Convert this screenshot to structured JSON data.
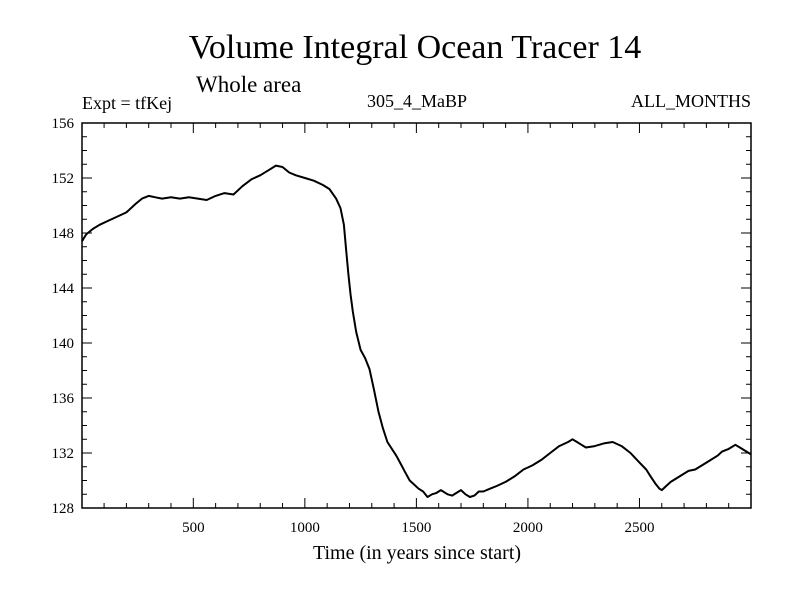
{
  "chart_data": {
    "type": "line",
    "title": "Volume Integral Ocean Tracer 14",
    "subtitle": "Whole area",
    "left_label": "Expt = tfKej",
    "center_label": "305_4_MaBP",
    "right_label": "ALL_MONTHS",
    "xlabel": "Time (in years since start)",
    "ylabel": "",
    "xlim": [
      1,
      3000
    ],
    "ylim": [
      128,
      156
    ],
    "xticks": [
      500,
      1000,
      1500,
      2000,
      2500
    ],
    "yticks": [
      128,
      132,
      136,
      140,
      144,
      148,
      152,
      156
    ],
    "grid": false,
    "series": [
      {
        "color": "#000000",
        "x": [
          1,
          20,
          50,
          80,
          120,
          160,
          200,
          240,
          270,
          300,
          330,
          360,
          400,
          440,
          480,
          520,
          560,
          600,
          640,
          680,
          720,
          760,
          800,
          840,
          870,
          900,
          930,
          960,
          1000,
          1040,
          1080,
          1110,
          1140,
          1160,
          1175,
          1185,
          1195,
          1205,
          1215,
          1230,
          1250,
          1270,
          1290,
          1310,
          1330,
          1350,
          1370,
          1390,
          1410,
          1430,
          1450,
          1470,
          1490,
          1510,
          1530,
          1550,
          1570,
          1590,
          1610,
          1640,
          1660,
          1680,
          1700,
          1720,
          1740,
          1760,
          1780,
          1800,
          1830,
          1860,
          1900,
          1940,
          1980,
          2020,
          2060,
          2100,
          2140,
          2180,
          2200,
          2220,
          2240,
          2260,
          2300,
          2340,
          2380,
          2420,
          2460,
          2500,
          2530,
          2550,
          2570,
          2590,
          2600,
          2620,
          2640,
          2660,
          2690,
          2720,
          2750,
          2780,
          2800,
          2820,
          2850,
          2870,
          2900,
          2930,
          2960,
          3000
        ],
        "values": [
          147.4,
          147.9,
          148.3,
          148.6,
          148.9,
          149.2,
          149.5,
          150.1,
          150.5,
          150.7,
          150.6,
          150.5,
          150.6,
          150.5,
          150.6,
          150.5,
          150.4,
          150.7,
          150.9,
          150.8,
          151.4,
          151.9,
          152.2,
          152.6,
          152.9,
          152.8,
          152.4,
          152.2,
          152.0,
          151.8,
          151.5,
          151.2,
          150.5,
          149.8,
          148.6,
          146.8,
          145.0,
          143.5,
          142.3,
          140.8,
          139.5,
          138.9,
          138.1,
          136.6,
          135.0,
          133.8,
          132.8,
          132.3,
          131.8,
          131.2,
          130.6,
          130.0,
          129.7,
          129.4,
          129.2,
          128.8,
          129.0,
          129.1,
          129.3,
          129.0,
          128.9,
          129.1,
          129.3,
          129.0,
          128.8,
          128.9,
          129.2,
          129.2,
          129.4,
          129.6,
          129.9,
          130.3,
          130.8,
          131.1,
          131.5,
          132.0,
          132.5,
          132.8,
          133.0,
          132.8,
          132.6,
          132.4,
          132.5,
          132.7,
          132.8,
          132.5,
          132.0,
          131.3,
          130.8,
          130.3,
          129.8,
          129.4,
          129.3,
          129.6,
          129.9,
          130.1,
          130.4,
          130.7,
          130.8,
          131.1,
          131.3,
          131.5,
          131.8,
          132.1,
          132.3,
          132.6,
          132.3,
          131.9
        ]
      }
    ]
  }
}
